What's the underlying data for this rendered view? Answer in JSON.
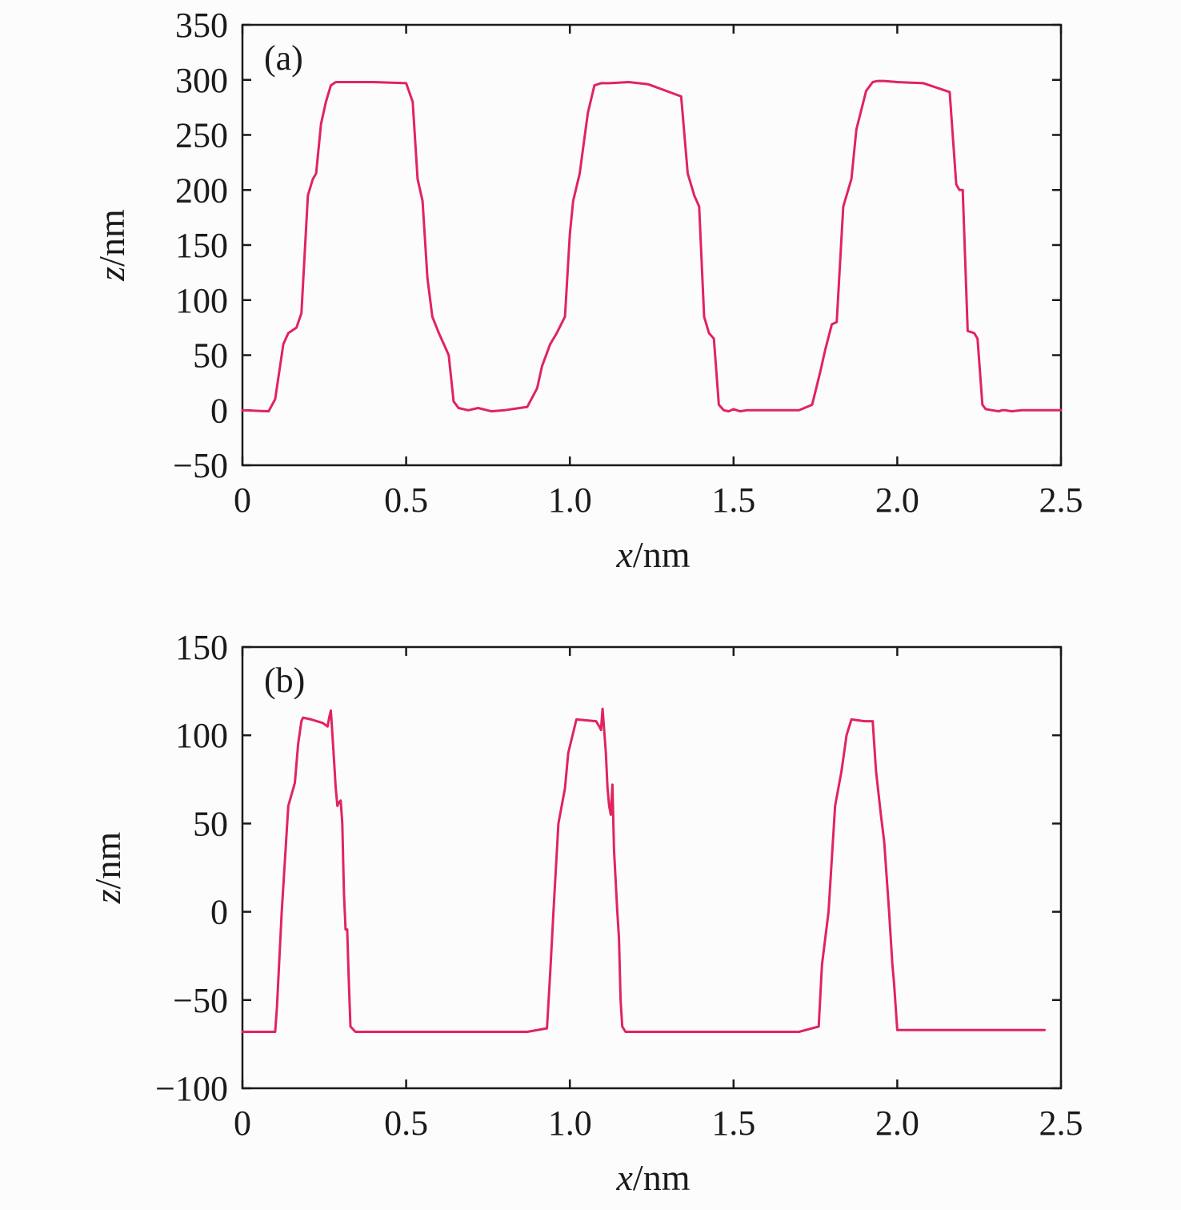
{
  "chart_data": [
    {
      "type": "line",
      "panel_label": "(a)",
      "xlabel": {
        "var": "x",
        "unit": "/nm"
      },
      "ylabel": {
        "var": "z",
        "unit": "/nm"
      },
      "xlim": [
        0,
        2.5
      ],
      "ylim": [
        -50,
        350
      ],
      "xticks": [
        0,
        0.5,
        1.0,
        1.5,
        2.0,
        2.5
      ],
      "xtick_labels": [
        "0",
        "0.5",
        "1.0",
        "1.5",
        "2.0",
        "2.5"
      ],
      "yticks": [
        -50,
        0,
        50,
        100,
        150,
        200,
        250,
        300,
        350
      ],
      "ytick_labels": [
        "−50",
        "0",
        "50",
        "100",
        "150",
        "200",
        "250",
        "300",
        "350"
      ],
      "grid": false,
      "series": [
        {
          "color": "#e0245e",
          "x": [
            0,
            0.08,
            0.1,
            0.125,
            0.14,
            0.165,
            0.18,
            0.2,
            0.215,
            0.225,
            0.24,
            0.255,
            0.27,
            0.285,
            0.3,
            0.4,
            0.5,
            0.52,
            0.535,
            0.55,
            0.565,
            0.58,
            0.6,
            0.615,
            0.63,
            0.645,
            0.66,
            0.675,
            0.69,
            0.72,
            0.76,
            0.8,
            0.87,
            0.9,
            0.915,
            0.94,
            0.96,
            0.985,
            1.0,
            1.01,
            1.03,
            1.055,
            1.075,
            1.095,
            1.12,
            1.18,
            1.24,
            1.34,
            1.36,
            1.38,
            1.395,
            1.41,
            1.425,
            1.44,
            1.455,
            1.47,
            1.485,
            1.5,
            1.51,
            1.52,
            1.54,
            1.6,
            1.7,
            1.74,
            1.765,
            1.78,
            1.8,
            1.815,
            1.835,
            1.86,
            1.875,
            1.905,
            1.925,
            1.94,
            1.96,
            2.0,
            2.08,
            2.16,
            2.18,
            2.19,
            2.2,
            2.215,
            2.235,
            2.245,
            2.26,
            2.27,
            2.29,
            2.31,
            2.32,
            2.33,
            2.35,
            2.38,
            2.43,
            2.5
          ],
          "y": [
            0,
            -1,
            10,
            60,
            70,
            75,
            88,
            195,
            210,
            215,
            260,
            280,
            295,
            298,
            298,
            298,
            297,
            280,
            210,
            190,
            120,
            85,
            70,
            60,
            50,
            8,
            2,
            1,
            0,
            2,
            -1,
            0,
            3,
            20,
            40,
            60,
            70,
            85,
            160,
            190,
            215,
            270,
            295,
            297,
            297,
            298,
            296,
            285,
            215,
            195,
            185,
            85,
            70,
            65,
            5,
            0,
            -1,
            1,
            0,
            -1,
            0,
            0,
            0,
            5,
            35,
            55,
            78,
            80,
            185,
            210,
            255,
            290,
            298,
            299,
            299,
            298,
            297,
            289,
            205,
            200,
            200,
            72,
            70,
            65,
            5,
            1,
            0,
            -1,
            0,
            0,
            -1,
            0,
            0,
            0
          ]
        }
      ]
    },
    {
      "type": "line",
      "panel_label": "(b)",
      "xlabel": {
        "var": "x",
        "unit": "/nm"
      },
      "ylabel": {
        "var": "z",
        "unit": "/nm"
      },
      "xlim": [
        0,
        2.5
      ],
      "ylim": [
        -100,
        150
      ],
      "xticks": [
        0,
        0.5,
        1.0,
        1.5,
        2.0,
        2.5
      ],
      "xtick_labels": [
        "0",
        "0.5",
        "1.0",
        "1.5",
        "2.0",
        "2.5"
      ],
      "yticks": [
        -100,
        -50,
        0,
        50,
        100,
        150
      ],
      "ytick_labels": [
        "−100",
        "−50",
        "0",
        "50",
        "100",
        "150"
      ],
      "grid": false,
      "series": [
        {
          "color": "#e0245e",
          "x": [
            0,
            0.1,
            0.105,
            0.12,
            0.14,
            0.16,
            0.17,
            0.18,
            0.185,
            0.21,
            0.245,
            0.26,
            0.265,
            0.27,
            0.275,
            0.28,
            0.285,
            0.29,
            0.295,
            0.3,
            0.305,
            0.31,
            0.315,
            0.32,
            0.325,
            0.33,
            0.345,
            0.5,
            0.7,
            0.87,
            0.93,
            0.94,
            0.95,
            0.965,
            0.985,
            0.995,
            1.02,
            1.08,
            1.09,
            1.095,
            1.1,
            1.11,
            1.115,
            1.12,
            1.125,
            1.13,
            1.135,
            1.145,
            1.15,
            1.155,
            1.16,
            1.17,
            1.3,
            1.5,
            1.7,
            1.76,
            1.77,
            1.79,
            1.81,
            1.83,
            1.845,
            1.86,
            1.9,
            1.925,
            1.935,
            1.95,
            1.96,
            1.975,
            1.985,
            1.99,
            2.0,
            2.2,
            2.45
          ],
          "y": [
            -68,
            -68,
            -55,
            0,
            60,
            73,
            95,
            108,
            110,
            109,
            107,
            105,
            110,
            114,
            100,
            85,
            70,
            60,
            62,
            63,
            50,
            10,
            -10,
            -10,
            -40,
            -65,
            -68,
            -68,
            -68,
            -68,
            -66,
            -35,
            0,
            50,
            70,
            90,
            109,
            108,
            105,
            103,
            115,
            90,
            70,
            60,
            55,
            72,
            35,
            0,
            -15,
            -50,
            -65,
            -68,
            -68,
            -68,
            -68,
            -65,
            -30,
            0,
            60,
            80,
            100,
            109,
            108,
            108,
            80,
            55,
            40,
            0,
            -30,
            -40,
            -67,
            -67,
            -67
          ]
        }
      ]
    }
  ]
}
